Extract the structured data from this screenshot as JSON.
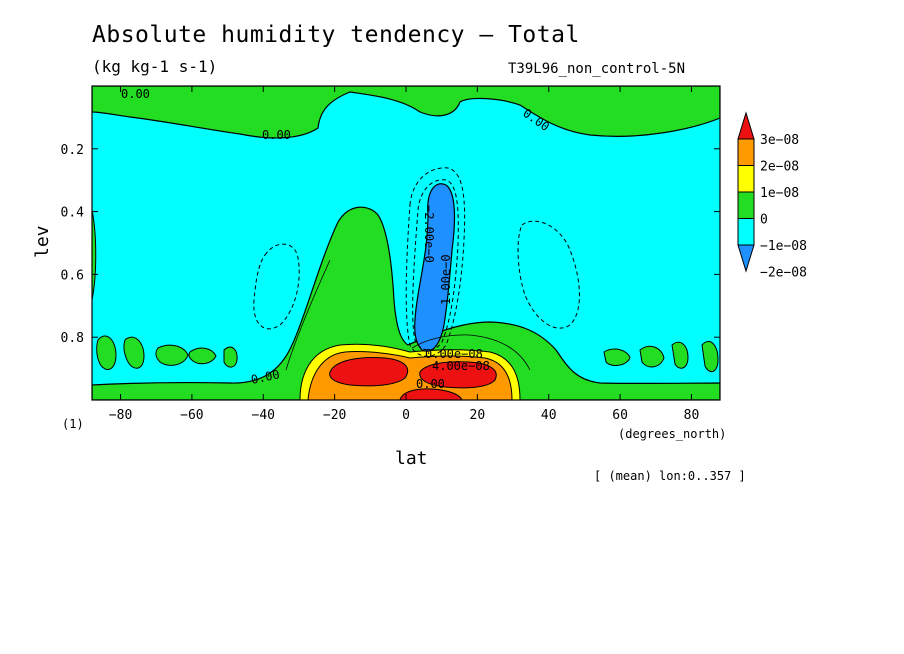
{
  "title": "Absolute humidity tendency — Total",
  "units": "(kg kg-1 s-1)",
  "run_label": "T39L96_non_control-5N",
  "mean_note": "[ (mean) lon:0..357 ]",
  "axis_note": "(1)",
  "chart_data": {
    "type": "heatmap",
    "xlabel": "lat",
    "xunits": "(degrees_north)",
    "ylabel": "lev",
    "xlim": [
      -88,
      88
    ],
    "ylim": [
      0.0,
      1.0
    ],
    "y_inverted": true,
    "xticks": [
      -80,
      -60,
      -40,
      -20,
      0,
      20,
      40,
      60,
      80
    ],
    "yticks": [
      0.2,
      0.4,
      0.6,
      0.8
    ],
    "xtick_labels": [
      "−80",
      "−60",
      "−40",
      "−20",
      "0",
      "20",
      "40",
      "60",
      "80"
    ],
    "ytick_labels": [
      "0.2",
      "0.4",
      "0.6",
      "0.8"
    ],
    "colorbar": {
      "labels": [
        "3e−08",
        "2e−08",
        "1e−08",
        "0",
        "−1e−08",
        "−2e−08"
      ],
      "levels": [
        -2e-08,
        -1e-08,
        0,
        1e-08,
        2e-08,
        3e-08
      ],
      "colors": [
        "#1e90ff",
        "#00ffff",
        "#22dd22",
        "#ffff00",
        "#ff9900",
        "#ee1111"
      ],
      "extends": "both"
    },
    "contour_labels": [
      "0.00",
      "0.00",
      "0.00",
      "0.00",
      "−2.00e−0",
      "1.00e−0",
      "0.00e−08",
      "4.00e−08",
      "0.00"
    ]
  },
  "colors": {
    "background": "#00ffff",
    "positive_small": "#22dd22",
    "positive_mid": "#ffff00",
    "positive_high": "#ff9900",
    "positive_max": "#ee1111",
    "negative_mid": "#1e90ff"
  }
}
